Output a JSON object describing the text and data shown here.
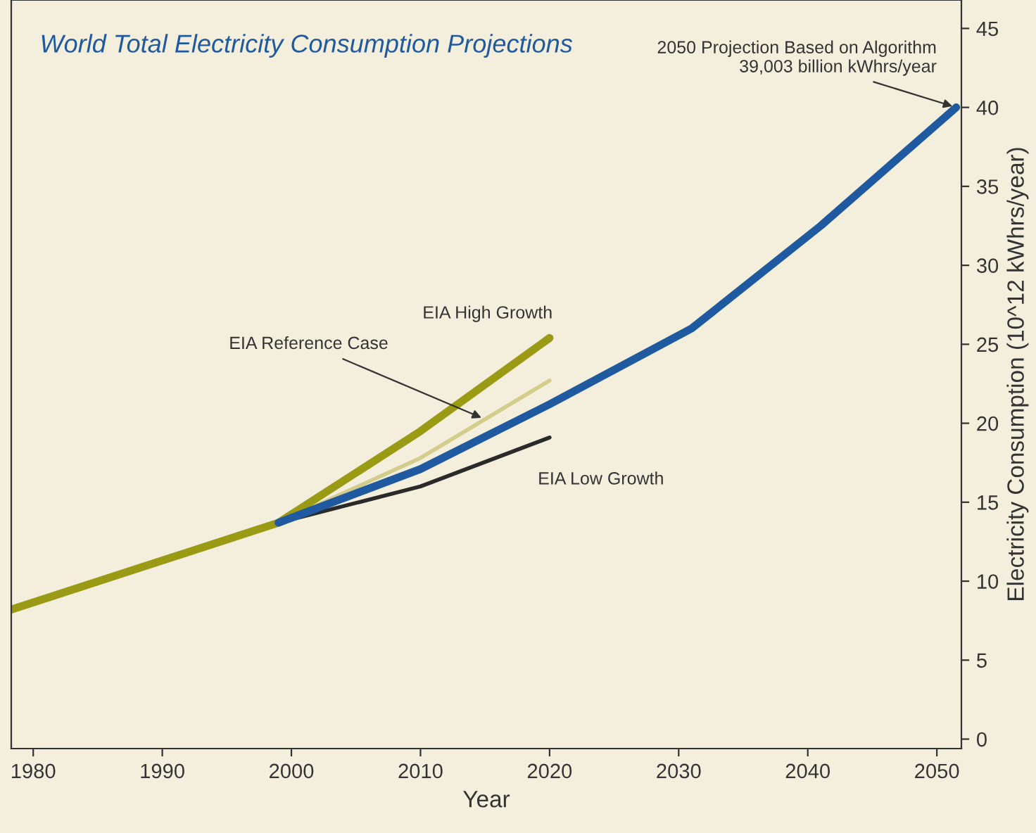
{
  "chart_data": {
    "type": "line",
    "title": "World Total Electricity Consumption Projections",
    "xlabel": "Year",
    "ylabel": "Electricity Consumption (10^12 kWhrs/year)",
    "xlim": [
      1978.3,
      2051.9
    ],
    "xticks": [
      1980,
      1990,
      2000,
      2010,
      2020,
      2030,
      2040,
      2050
    ],
    "ylim": [
      -0.6,
      46.8
    ],
    "yticks": [
      0,
      5,
      10,
      15,
      20,
      25,
      30,
      35,
      40,
      45
    ],
    "series": [
      {
        "color": "#1f5aa0",
        "x": [
          1999,
          2010,
          2020,
          2031,
          2041,
          2051.5
        ],
        "values": [
          13.7,
          17.1,
          21.2,
          26.0,
          32.5,
          40.0
        ]
      },
      {
        "name": "EIA Low Growth",
        "color": "#2a2a2a",
        "x": [
          1999,
          2010,
          2020
        ],
        "values": [
          13.7,
          16.0,
          19.1
        ]
      },
      {
        "name": "EIA Reference Case",
        "color": "#d4cc8a",
        "x": [
          1999,
          2010,
          2020
        ],
        "values": [
          13.7,
          17.8,
          22.7
        ]
      },
      {
        "name": "EIA High Growth",
        "color": "#9a9a14",
        "x": [
          1978.3,
          1999,
          2010,
          2020
        ],
        "values": [
          8.2,
          13.7,
          19.5,
          25.4
        ]
      }
    ],
    "annotations": [
      {
        "text": "2050 Projection Based on Algorithm\n39,003 billion kWhrs/year",
        "x": 2051.5,
        "y": 40.0
      }
    ],
    "grid": false
  }
}
